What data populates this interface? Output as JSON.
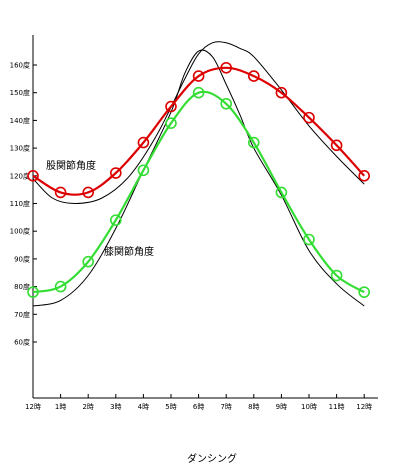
{
  "chart_data": {
    "type": "line",
    "title": "",
    "xlabel": "ダンシング",
    "ylabel": "",
    "x_ticks": [
      "12時",
      "1時",
      "2時",
      "3時",
      "4時",
      "5時",
      "6時",
      "7時",
      "8時",
      "9時",
      "10時",
      "11時",
      "12時"
    ],
    "y_ticks": [
      "60度",
      "70度",
      "80度",
      "90度",
      "100度",
      "110度",
      "120度",
      "130度",
      "140度",
      "150度",
      "160度"
    ],
    "ylim": [
      45,
      168
    ],
    "grid": false,
    "series": [
      {
        "name": "股関節角度",
        "color": "#dd0000",
        "marker": "circle",
        "x": [
          0,
          1,
          2,
          3,
          4,
          5,
          6,
          7,
          8,
          9,
          10,
          11,
          12
        ],
        "values": [
          120,
          114,
          114,
          121,
          132,
          145,
          156,
          159,
          156,
          150,
          141,
          131,
          120
        ]
      },
      {
        "name": "膝関節角度",
        "color": "#33dd33",
        "marker": "circle",
        "x": [
          0,
          1,
          2,
          3,
          4,
          5,
          6,
          7,
          8,
          9,
          10,
          11,
          12
        ],
        "values": [
          78,
          80,
          89,
          104,
          122,
          139,
          150,
          146,
          132,
          114,
          97,
          84,
          78
        ]
      }
    ],
    "reference_lines": [
      {
        "color": "#000000",
        "x": [
          0,
          0.7,
          1.5,
          2.5,
          3.5,
          4.5,
          5.5,
          6.0,
          6.5,
          7.0,
          7.5,
          8.0,
          9.0,
          10.0,
          11.0,
          12.0
        ],
        "values": [
          119,
          112,
          110,
          112,
          120,
          135,
          155,
          164,
          168,
          168,
          166,
          163,
          151,
          138,
          127,
          117
        ]
      },
      {
        "color": "#000000",
        "x": [
          0,
          1.0,
          2.0,
          3.0,
          4.0,
          5.0,
          5.5,
          6.0,
          6.5,
          7.0,
          7.5,
          8.0,
          9.0,
          10.0,
          11.0,
          12.0
        ],
        "values": [
          73,
          75,
          84,
          101,
          122,
          143,
          157,
          165,
          163,
          153,
          142,
          130,
          113,
          93,
          81,
          73
        ]
      }
    ]
  }
}
